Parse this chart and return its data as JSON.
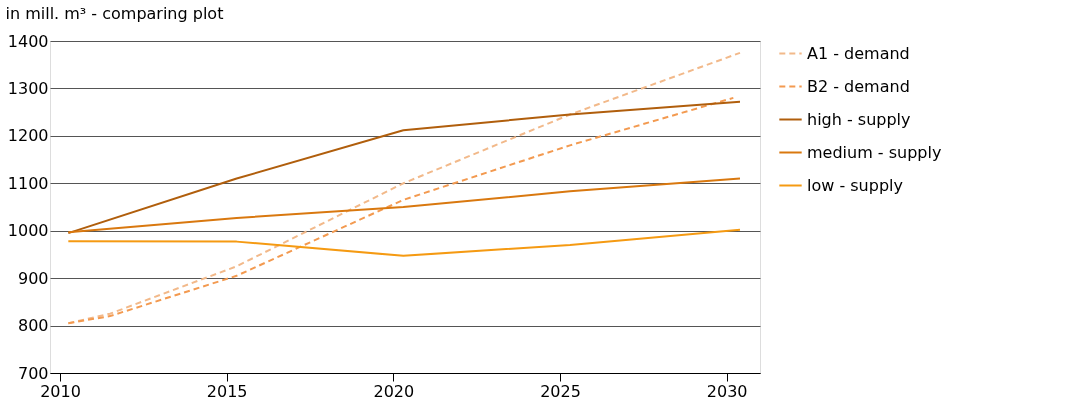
{
  "chart_data": {
    "type": "line",
    "ylabel": "in mill. m³ - comparing plot",
    "xlim": [
      2009.7,
      2031
    ],
    "xticks": [
      2010,
      2015,
      2020,
      2025,
      2030
    ],
    "ylim": [
      700,
      1400
    ],
    "yticks": [
      700,
      800,
      900,
      1000,
      1100,
      1200,
      1300,
      1400
    ],
    "grid": "y",
    "legend": "right",
    "marker": "none",
    "series": [
      {
        "name": "A1 - demand",
        "color": "#f2b98a",
        "line_style": "dashed",
        "x": [
          2010.25,
          2011.5,
          2015.3,
          2020.3,
          2025.3,
          2030.4
        ],
        "values": [
          805,
          825,
          925,
          1100,
          1245,
          1375
        ]
      },
      {
        "name": "B2 - demand",
        "color": "#f39a50",
        "line_style": "dashed",
        "x": [
          2010.25,
          2011.5,
          2015.3,
          2020.3,
          2025.3,
          2030.2
        ],
        "values": [
          805,
          820,
          905,
          1065,
          1180,
          1280
        ]
      },
      {
        "name": "high - supply",
        "color": "#b05e0c",
        "line_style": "solid",
        "x": [
          2010.25,
          2015.3,
          2020.3,
          2025.3,
          2030.4
        ],
        "values": [
          995,
          1110,
          1212,
          1245,
          1272
        ]
      },
      {
        "name": "medium - supply",
        "color": "#d9780f",
        "line_style": "solid",
        "x": [
          2010.25,
          2015.3,
          2020.3,
          2025.3,
          2030.4
        ],
        "values": [
          997,
          1027,
          1050,
          1083,
          1110
        ]
      },
      {
        "name": "low - supply",
        "color": "#f59a12",
        "line_style": "solid",
        "x": [
          2010.25,
          2015.3,
          2020.3,
          2025.3,
          2030.4
        ],
        "values": [
          978,
          977,
          947,
          970,
          1002
        ]
      }
    ]
  }
}
